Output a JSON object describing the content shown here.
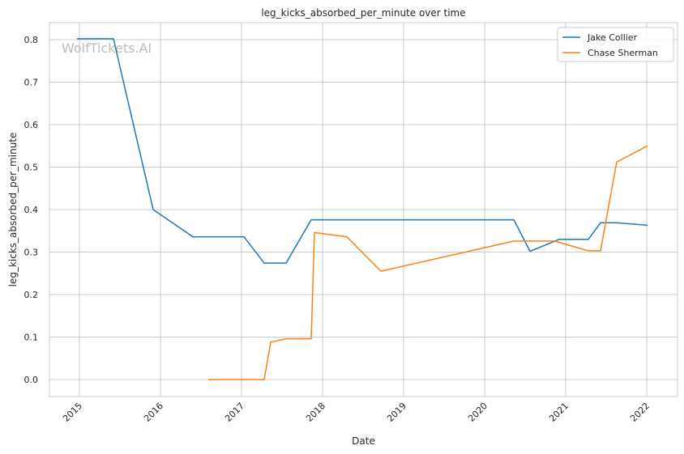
{
  "chart_data": {
    "type": "line",
    "title": "leg_kicks_absorbed_per_minute over time",
    "xlabel": "Date",
    "ylabel": "leg_kicks_absorbed_per_minute",
    "watermark": "WolfTickets.AI",
    "xlim": [
      2014.63,
      2022.38
    ],
    "ylim": [
      -0.04,
      0.84
    ],
    "x_ticks": [
      2015,
      2016,
      2017,
      2018,
      2019,
      2020,
      2021,
      2022
    ],
    "x_tick_labels": [
      "2015",
      "2016",
      "2017",
      "2018",
      "2019",
      "2020",
      "2021",
      "2022"
    ],
    "y_ticks": [
      0.0,
      0.1,
      0.2,
      0.3,
      0.4,
      0.5,
      0.6,
      0.7,
      0.8
    ],
    "y_tick_labels": [
      "0.0",
      "0.1",
      "0.2",
      "0.3",
      "0.4",
      "0.5",
      "0.6",
      "0.7",
      "0.8"
    ],
    "grid": true,
    "legend_position": "top-right",
    "series": [
      {
        "name": "Jake Collier",
        "color": "#1f77b4",
        "points": [
          [
            2014.97,
            0.802
          ],
          [
            2015.42,
            0.802
          ],
          [
            2015.91,
            0.4
          ],
          [
            2016.4,
            0.336
          ],
          [
            2017.03,
            0.336
          ],
          [
            2017.28,
            0.274
          ],
          [
            2017.55,
            0.274
          ],
          [
            2017.86,
            0.376
          ],
          [
            2020.36,
            0.376
          ],
          [
            2020.56,
            0.302
          ],
          [
            2020.92,
            0.33
          ],
          [
            2021.28,
            0.33
          ],
          [
            2021.43,
            0.369
          ],
          [
            2021.63,
            0.369
          ],
          [
            2022.01,
            0.363
          ]
        ]
      },
      {
        "name": "Chase Sherman",
        "color": "#ff7f0e",
        "points": [
          [
            2016.59,
            0.0
          ],
          [
            2017.28,
            0.0
          ],
          [
            2017.36,
            0.088
          ],
          [
            2017.55,
            0.096
          ],
          [
            2017.86,
            0.096
          ],
          [
            2017.9,
            0.346
          ],
          [
            2018.3,
            0.336
          ],
          [
            2018.72,
            0.255
          ],
          [
            2020.36,
            0.326
          ],
          [
            2020.86,
            0.326
          ],
          [
            2021.28,
            0.303
          ],
          [
            2021.43,
            0.303
          ],
          [
            2021.63,
            0.512
          ],
          [
            2022.01,
            0.55
          ]
        ]
      }
    ]
  }
}
